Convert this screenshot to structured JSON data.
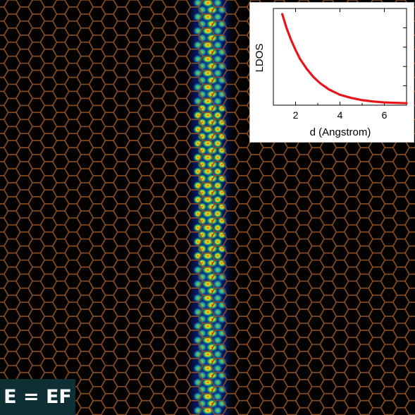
{
  "energy_label": "E = EF",
  "colors": {
    "background": "#050302",
    "lattice_bond": "#8a4e20",
    "ldos_low": "#061a6e",
    "ldos_mid": "#27b45a",
    "ldos_high": "#f2e21c",
    "ldos_peak": "#e0341a",
    "curve": "#e8141a",
    "label_box": "#0e2f33"
  },
  "chart_data": {
    "type": "line",
    "xlabel": "d (Angstrom)",
    "ylabel": "LDOS",
    "xlim": [
      1,
      7
    ],
    "x_ticks": [
      "2",
      "4",
      "6"
    ],
    "y_tick_labels": "none",
    "series": [
      {
        "x": [
          1.4,
          1.6,
          1.8,
          2.0,
          2.2,
          2.5,
          2.8,
          3.1,
          3.5,
          4.0,
          4.5,
          5.0,
          5.5,
          6.0,
          6.5,
          7.0
        ],
        "y": [
          1.0,
          0.84,
          0.71,
          0.6,
          0.5,
          0.39,
          0.3,
          0.23,
          0.16,
          0.1,
          0.065,
          0.04,
          0.025,
          0.015,
          0.01,
          0.006
        ]
      }
    ]
  }
}
